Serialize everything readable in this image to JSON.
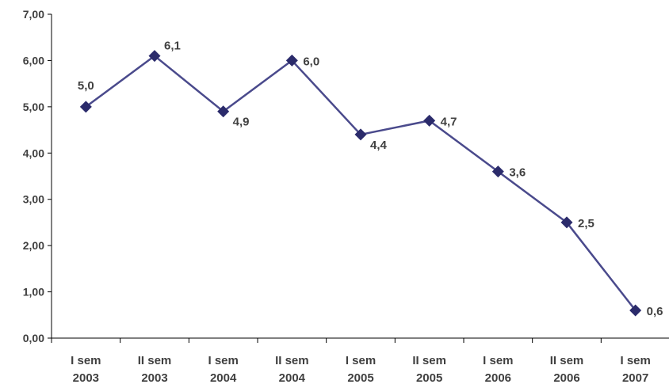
{
  "chart_data": {
    "type": "line",
    "title": "",
    "xlabel": "",
    "ylabel": "",
    "ylim": [
      0,
      7
    ],
    "yticks": [
      "0,00",
      "1,00",
      "2,00",
      "3,00",
      "4,00",
      "5,00",
      "6,00",
      "7,00"
    ],
    "grid": false,
    "legend": "none",
    "categories": [
      [
        "I sem",
        "2003"
      ],
      [
        "II sem",
        "2003"
      ],
      [
        "I sem",
        "2004"
      ],
      [
        "II sem",
        "2004"
      ],
      [
        "I sem",
        "2005"
      ],
      [
        "II sem",
        "2005"
      ],
      [
        "I sem",
        "2006"
      ],
      [
        "II sem",
        "2006"
      ],
      [
        "I sem",
        "2007"
      ]
    ],
    "series": [
      {
        "values": [
          5.0,
          6.1,
          4.9,
          6.0,
          4.4,
          4.7,
          3.6,
          2.5,
          0.6
        ],
        "labels": [
          "5,0",
          "6,1",
          "4,9",
          "6,0",
          "4,4",
          "4,7",
          "3,6",
          "2,5",
          "0,6"
        ],
        "color": "#4a4a8c",
        "marker_color": "#2b2b6b"
      }
    ],
    "axis_color": "#000000"
  }
}
